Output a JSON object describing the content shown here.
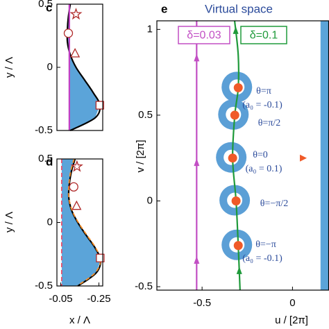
{
  "chart_data": [
    {
      "type": "line",
      "panel_label": "c",
      "ylabel": "y / Λ",
      "xlim": [
        -0.03,
        -0.27
      ],
      "ylim": [
        -0.5,
        0.5
      ],
      "yticks": [
        -0.5,
        0,
        0.5
      ],
      "fill_color": "#5ba4d9",
      "fill_from": -0.095,
      "series": [
        {
          "color": "#000000",
          "dash": false,
          "smooth": true,
          "x": [
            -0.1,
            -0.09,
            -0.085,
            -0.085,
            -0.1,
            -0.13,
            -0.175,
            -0.22,
            -0.255,
            -0.23,
            -0.1
          ],
          "y": [
            0.5,
            0.4,
            0.3,
            0.2,
            0.1,
            0,
            -0.1,
            -0.2,
            -0.3,
            -0.4,
            -0.5
          ]
        },
        {
          "color": "#c23fc4",
          "dash": false,
          "smooth": false,
          "x": [
            -0.095,
            -0.095
          ],
          "y": [
            0.5,
            -0.5
          ]
        }
      ],
      "markers": [
        {
          "shape": "star",
          "color": "#b02a2a",
          "x": -0.13,
          "y": 0.42
        },
        {
          "shape": "circle",
          "color": "#b02a2a",
          "x": -0.09,
          "y": 0.27
        },
        {
          "shape": "triangle",
          "color": "#b02a2a",
          "x": -0.125,
          "y": 0.11
        },
        {
          "shape": "square",
          "color": "#b02a2a",
          "x": -0.255,
          "y": -0.3
        }
      ]
    },
    {
      "type": "line",
      "panel_label": "d",
      "ylabel": "y / Λ",
      "xlabel": "x / Λ",
      "xlim": [
        -0.03,
        -0.27
      ],
      "ylim": [
        -0.5,
        0.5
      ],
      "xticks": [
        -0.05,
        -0.25
      ],
      "yticks": [
        -0.5,
        0,
        0.5
      ],
      "fill_color": "#5ba4d9",
      "fill_from": -0.055,
      "series": [
        {
          "color": "#000000",
          "dash": false,
          "smooth": true,
          "x": [
            -0.125,
            -0.106,
            -0.095,
            -0.092,
            -0.106,
            -0.139,
            -0.183,
            -0.23,
            -0.259,
            -0.234,
            -0.14
          ],
          "y": [
            0.5,
            0.4,
            0.3,
            0.2,
            0.1,
            0,
            -0.1,
            -0.2,
            -0.3,
            -0.4,
            -0.5
          ]
        },
        {
          "color": "#f28c28",
          "dash": true,
          "smooth": true,
          "x": [
            -0.12,
            -0.102,
            -0.093,
            -0.092,
            -0.108,
            -0.142,
            -0.187,
            -0.233,
            -0.258,
            -0.228,
            -0.135
          ],
          "y": [
            0.5,
            0.4,
            0.3,
            0.2,
            0.1,
            0,
            -0.1,
            -0.2,
            -0.3,
            -0.4,
            -0.5
          ]
        },
        {
          "color": "#e8506a",
          "dash": true,
          "smooth": false,
          "x": [
            -0.055,
            -0.055
          ],
          "y": [
            0.5,
            -0.5
          ]
        }
      ],
      "markers": [
        {
          "shape": "star",
          "color": "#b02a2a",
          "x": -0.135,
          "y": 0.44
        },
        {
          "shape": "circle",
          "color": "#b02a2a",
          "x": -0.118,
          "y": 0.28
        },
        {
          "shape": "triangle",
          "color": "#b02a2a",
          "x": -0.133,
          "y": 0.13
        },
        {
          "shape": "square",
          "color": "#b02a2a",
          "x": -0.257,
          "y": -0.28
        }
      ]
    },
    {
      "type": "line",
      "panel_label": "e",
      "title": "Virtual space",
      "xlabel": "u / [2π]",
      "ylabel": "v / [2π]",
      "xlim": [
        -0.75,
        0.2
      ],
      "ylim": [
        -0.52,
        1.05
      ],
      "xticks": [
        -0.5,
        0
      ],
      "yticks": [
        -0.5,
        0,
        0.5,
        1
      ],
      "wall_x": [
        0.155,
        0.2
      ],
      "wall_color": "#5ba4d9",
      "series": [
        {
          "name": "δ=0.03",
          "color": "#c24fc4",
          "dash": false,
          "smooth": false,
          "x": [
            -0.53,
            -0.53
          ],
          "y": [
            -0.52,
            1.05
          ],
          "arrows_y": [
            0.83,
            0.22,
            -0.35
          ]
        },
        {
          "name": "δ=0.1",
          "color": "#1f9a3a",
          "dash": false,
          "smooth": true,
          "x": [
            -0.29,
            -0.3,
            -0.312,
            -0.331,
            -0.319,
            -0.3,
            -0.3,
            -0.32
          ],
          "y": [
            -0.52,
            -0.26,
            0,
            0.25,
            0.5,
            0.66,
            0.85,
            1.05
          ],
          "arrows_y": [
            0.99,
            -0.41
          ]
        }
      ],
      "points": {
        "color": "#f05a28",
        "ring_color": "#5b9fd6",
        "x": [
          -0.3,
          -0.319,
          -0.331,
          -0.312,
          -0.3
        ],
        "y": [
          0.66,
          0.5,
          0.25,
          0,
          -0.26
        ]
      },
      "markers": [
        {
          "shape": "triangle-right",
          "color": "#f05a28",
          "x": 0.06,
          "y": 0.25
        }
      ],
      "annotations": [
        "θ=π",
        "(a₀ = -0.1)",
        "θ=π/2",
        "θ=0",
        "(a₀ = 0.1)",
        "θ=−π/2",
        "θ=−π",
        "(a₀ = -0.1)"
      ]
    }
  ]
}
